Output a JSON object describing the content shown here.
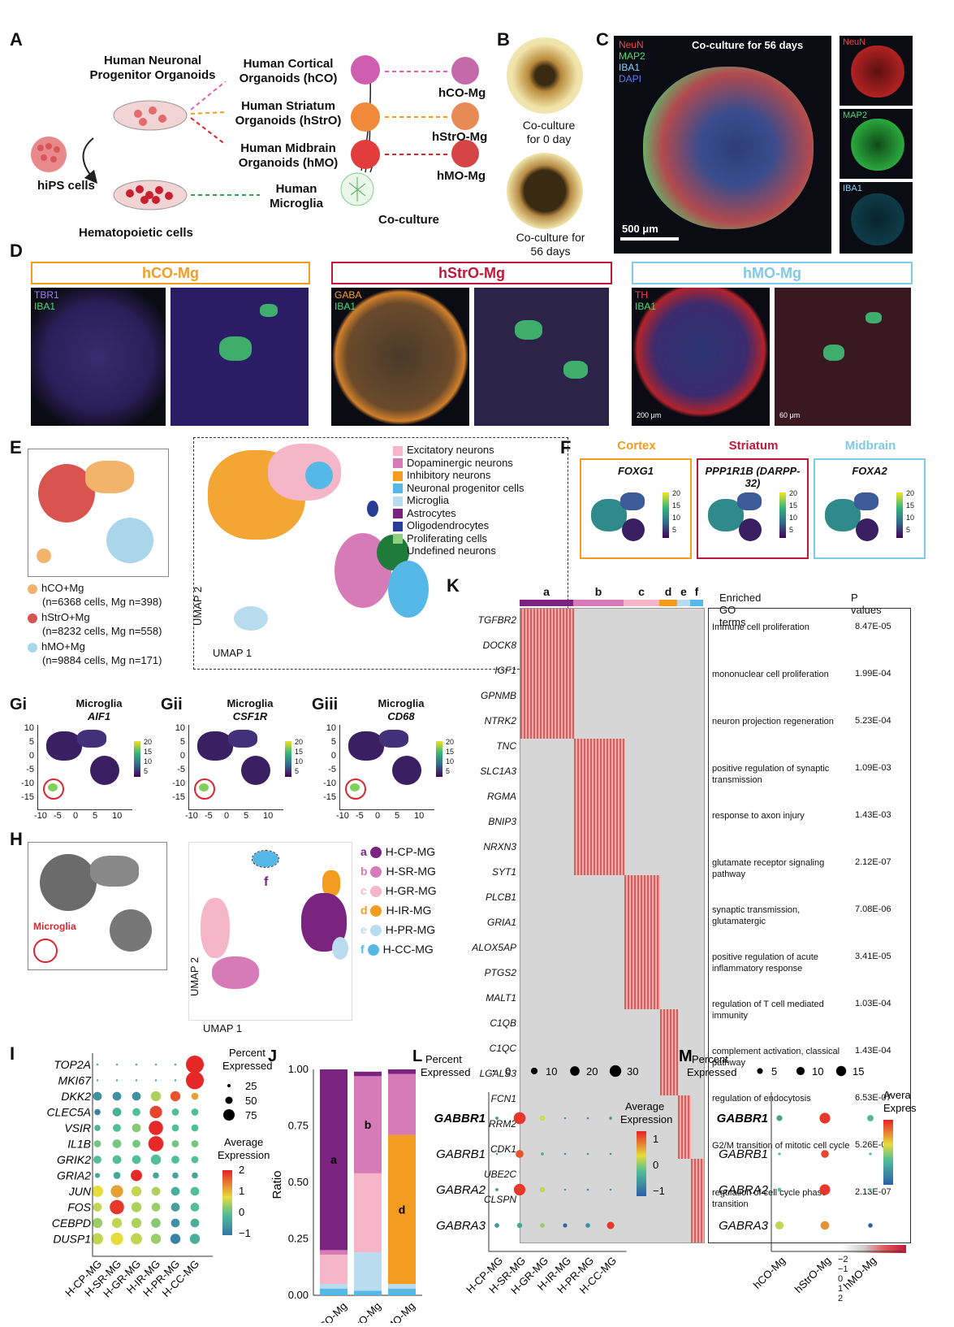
{
  "panelA": {
    "label": "A",
    "progenitor": "Human Neuronal Progenitor Organoids",
    "hips": "hiPS cells",
    "hemato": "Hematopoietic cells",
    "hco": "Human Cortical Organoids (hCO)",
    "hstro": "Human Striatum Organoids (hStrO)",
    "hmo": "Human Midbrain Organoids (hMO)",
    "microglia": "Human Microglia",
    "out1": "hCO-Mg",
    "out2": "hStrO-Mg",
    "out3": "hMO-Mg",
    "coculture": "Co-culture"
  },
  "panelB": {
    "label": "B",
    "cap0": "Co-culture for 0 day",
    "cap56": "Co-culture for 56 days"
  },
  "panelC": {
    "label": "C",
    "title": "Co-culture for 56 days",
    "ch": [
      "NeuN",
      "MAP2",
      "IBA1",
      "DAPI"
    ],
    "scale": "500 μm",
    "side": [
      "NeuN",
      "MAP2",
      "IBA1"
    ]
  },
  "panelD": {
    "label": "D",
    "boxes": [
      "hCO-Mg",
      "hStrO-Mg",
      "hMO-Mg"
    ],
    "ch1": [
      "TBR1",
      "IBA1"
    ],
    "ch2": [
      "GABA",
      "IBA1"
    ],
    "ch3": [
      "TH",
      "IBA1"
    ],
    "s1": "200 μm",
    "s2": "60 μm"
  },
  "panelE": {
    "label": "E",
    "umap1": "UMAP 1",
    "umap2": "UMAP 2",
    "legend": [
      {
        "name": "Excitatory neurons",
        "color": "#f4b6c8"
      },
      {
        "name": "Dopaminergic neurons",
        "color": "#d77bb8"
      },
      {
        "name": "Inhibitory neurons",
        "color": "#f39c1f"
      },
      {
        "name": "Neuronal progenitor cells",
        "color": "#56b8e6"
      },
      {
        "name": "Microglia",
        "color": "#b9dcee"
      },
      {
        "name": "Astrocytes",
        "color": "#7a2480"
      },
      {
        "name": "Oligodendrocytes",
        "color": "#2a3d96"
      },
      {
        "name": "Proliferating cells",
        "color": "#8fcf7e"
      },
      {
        "name": "Undefined neurons",
        "color": "#1f7b3a"
      }
    ],
    "samples": [
      {
        "name": "hCO+Mg",
        "detail": "(n=6368 cells, Mg n=398)",
        "color": "#f2b36a"
      },
      {
        "name": "hStrO+Mg",
        "detail": "(n=8232 cells, Mg n=558)",
        "color": "#d9534f"
      },
      {
        "name": "hMO+Mg",
        "detail": "(n=9884 cells, Mg n=171)",
        "color": "#a9d6ea"
      }
    ]
  },
  "panelF": {
    "label": "F",
    "regions": [
      {
        "title": "Cortex",
        "gene": "FOXG1",
        "color": "#f39c1f"
      },
      {
        "title": "Striatum",
        "gene": "PPP1R1B (DARPP-32)",
        "color": "#c0183a"
      },
      {
        "title": "Midbrain",
        "gene": "FOXA2",
        "color": "#7fc8e6"
      }
    ],
    "scale": [
      "20",
      "15",
      "10",
      "5"
    ]
  },
  "panelG": {
    "items": [
      {
        "label": "Gi",
        "title": "Microglia",
        "gene": "AIF1"
      },
      {
        "label": "Gii",
        "title": "Microglia",
        "gene": "CSF1R"
      },
      {
        "label": "Giii",
        "title": "Microglia",
        "gene": "CD68"
      }
    ],
    "yticks": [
      "10",
      "5",
      "0",
      "-5",
      "-10",
      "-15"
    ],
    "xticks": [
      "-10",
      "-5",
      "0",
      "5",
      "10"
    ],
    "scale": [
      "20",
      "15",
      "10",
      "5"
    ]
  },
  "panelH": {
    "label": "H",
    "arrow": "Microglia",
    "umap1": "UMAP 1",
    "umap2": "UMAP 2",
    "clusters": [
      {
        "key": "a",
        "name": "H-CP-MG",
        "color": "#7a2480"
      },
      {
        "key": "b",
        "name": "H-SR-MG",
        "color": "#d77bb8"
      },
      {
        "key": "c",
        "name": "H-GR-MG",
        "color": "#f4b6c8"
      },
      {
        "key": "d",
        "name": "H-IR-MG",
        "color": "#f39c1f"
      },
      {
        "key": "e",
        "name": "H-PR-MG",
        "color": "#b9dcee"
      },
      {
        "key": "f",
        "name": "H-CC-MG",
        "color": "#56b8e6"
      }
    ]
  },
  "panelK": {
    "label": "K",
    "groups": [
      "a",
      "b",
      "c",
      "d",
      "e",
      "f"
    ],
    "genes": [
      "TGFBR2",
      "DOCK8",
      "IGF1",
      "GPNMB",
      "NTRK2",
      "TNC",
      "SLC1A3",
      "RGMA",
      "BNIP3",
      "NRXN3",
      "SYT1",
      "PLCB1",
      "GRIA1",
      "ALOX5AP",
      "PTGS2",
      "MALT1",
      "C1QB",
      "C1QC",
      "LGALS3",
      "FCN1",
      "RRM2",
      "CDK1",
      "UBE2C",
      "CLSPN"
    ],
    "go_header": "Enriched GO terms",
    "p_header": "P values",
    "go": [
      {
        "term": "Immune cell proliferation",
        "p": "8.47E-05"
      },
      {
        "term": "mononuclear cell proliferation",
        "p": "1.99E-04"
      },
      {
        "term": "neuron projection regeneration",
        "p": "5.23E-04"
      },
      {
        "term": "positive regulation of synaptic transmission",
        "p": "1.09E-03"
      },
      {
        "term": "response to axon injury",
        "p": "1.43E-03"
      },
      {
        "term": "glutamate receptor signaling pathway",
        "p": "2.12E-07"
      },
      {
        "term": "synaptic transmission, glutamatergic",
        "p": "7.08E-06"
      },
      {
        "term": "positive regulation of acute inflammatory response",
        "p": "3.41E-05"
      },
      {
        "term": "regulation of T cell mediated immunity",
        "p": "1.03E-04"
      },
      {
        "term": "complement activation, classical pathway",
        "p": "1.43E-04"
      },
      {
        "term": "regulation of endocytosis",
        "p": "6.53E-07"
      },
      {
        "term": "G2/M transition of mitotic cell cycle",
        "p": "5.26E-08"
      },
      {
        "term": "regulation of cell cycle phase transition",
        "p": "2.13E-07"
      }
    ],
    "colorbar": "−2 −1 0  1  2"
  },
  "panelI": {
    "label": "I",
    "genes": [
      "TOP2A",
      "MKI67",
      "DKK2",
      "CLEC5A",
      "VSIR",
      "IL1B",
      "GRIK2",
      "GRIA2",
      "JUN",
      "FOS",
      "CEBPD",
      "DUSP1"
    ],
    "groups": [
      "H-CP-MG",
      "H-SR-MG",
      "H-GR-MG",
      "H-IR-MG",
      "H-PR-MG",
      "H-CC-MG"
    ],
    "pct_title": "Percent Expressed",
    "pct_vals": [
      "25",
      "50",
      "75"
    ],
    "avg_title": "Average Expression",
    "avg_vals": [
      "2",
      "1",
      "0",
      "−1"
    ]
  },
  "chart_data": [
    {
      "type": "bar",
      "panel": "J",
      "categories": [
        "hCO-Mg",
        "hStrO-Mg",
        "hMO-Mg"
      ],
      "ylabel": "Ratio",
      "ylim": [
        0,
        1
      ],
      "yticks": [
        "0.00",
        "0.25",
        "0.50",
        "0.75",
        "1.00"
      ],
      "series": [
        {
          "name": "f",
          "color": "#56b8e6",
          "values": [
            0.03,
            0.02,
            0.03
          ]
        },
        {
          "name": "e",
          "color": "#b9dcee",
          "values": [
            0.02,
            0.17,
            0.02
          ]
        },
        {
          "name": "d",
          "color": "#f39c1f",
          "values": [
            0.0,
            0.0,
            0.66
          ]
        },
        {
          "name": "c",
          "color": "#f4b6c8",
          "values": [
            0.13,
            0.35,
            0.0
          ]
        },
        {
          "name": "b",
          "color": "#d77bb8",
          "values": [
            0.02,
            0.43,
            0.27
          ]
        },
        {
          "name": "a",
          "color": "#7a2480",
          "values": [
            0.8,
            0.02,
            0.02
          ]
        }
      ],
      "segment_labels": [
        {
          "col": 0,
          "series": "a",
          "text": "a"
        },
        {
          "col": 1,
          "series": "b",
          "text": "b"
        },
        {
          "col": 2,
          "series": "d",
          "text": "d"
        }
      ]
    },
    {
      "type": "scatter",
      "panel": "L",
      "genes": [
        "GABBR1",
        "GABRB1",
        "GABRA2",
        "GABRA3"
      ],
      "groups": [
        "H-CP-MG",
        "H-SR-MG",
        "H-GR-MG",
        "H-IR-MG",
        "H-PR-MG",
        "H-CC-MG"
      ],
      "pct_title": "Percent Expressed",
      "pct_legend": [
        "0",
        "10",
        "20",
        "30"
      ],
      "avg_title": "Average Expression",
      "avg_ticks": [
        "1",
        "0",
        "−1"
      ],
      "pct": [
        [
          2,
          32,
          6,
          1,
          1,
          2
        ],
        [
          1,
          14,
          2,
          1,
          1,
          1
        ],
        [
          2,
          30,
          6,
          1,
          1,
          1
        ],
        [
          5,
          6,
          5,
          4,
          5,
          12
        ]
      ],
      "avg": [
        [
          -0.6,
          1.9,
          0.7,
          -0.6,
          -0.6,
          -0.4
        ],
        [
          -0.6,
          1.7,
          -0.2,
          -0.6,
          -0.6,
          -0.6
        ],
        [
          -0.6,
          1.9,
          0.6,
          -0.6,
          -0.6,
          -0.6
        ],
        [
          -0.5,
          -0.3,
          0.4,
          -1.2,
          -0.6,
          1.9
        ]
      ]
    },
    {
      "type": "scatter",
      "panel": "M",
      "genes": [
        "GABBR1",
        "GABRB1",
        "GABRA2",
        "GABRA3"
      ],
      "groups": [
        "hCO-Mg",
        "hStrO-Mg",
        "hMO-Mg"
      ],
      "pct_title": "Percent Expressed",
      "pct_legend": [
        "5",
        "10",
        "15"
      ],
      "avg_title": "Avera Expres",
      "pct": [
        [
          5,
          17,
          6
        ],
        [
          1,
          9,
          1
        ],
        [
          2,
          17,
          1
        ],
        [
          10,
          11,
          3
        ]
      ],
      "avg": [
        [
          -0.4,
          1.9,
          -0.1
        ],
        [
          0,
          1.8,
          0
        ],
        [
          0,
          1.9,
          0
        ],
        [
          0.6,
          1.3,
          -1.2
        ]
      ]
    }
  ]
}
